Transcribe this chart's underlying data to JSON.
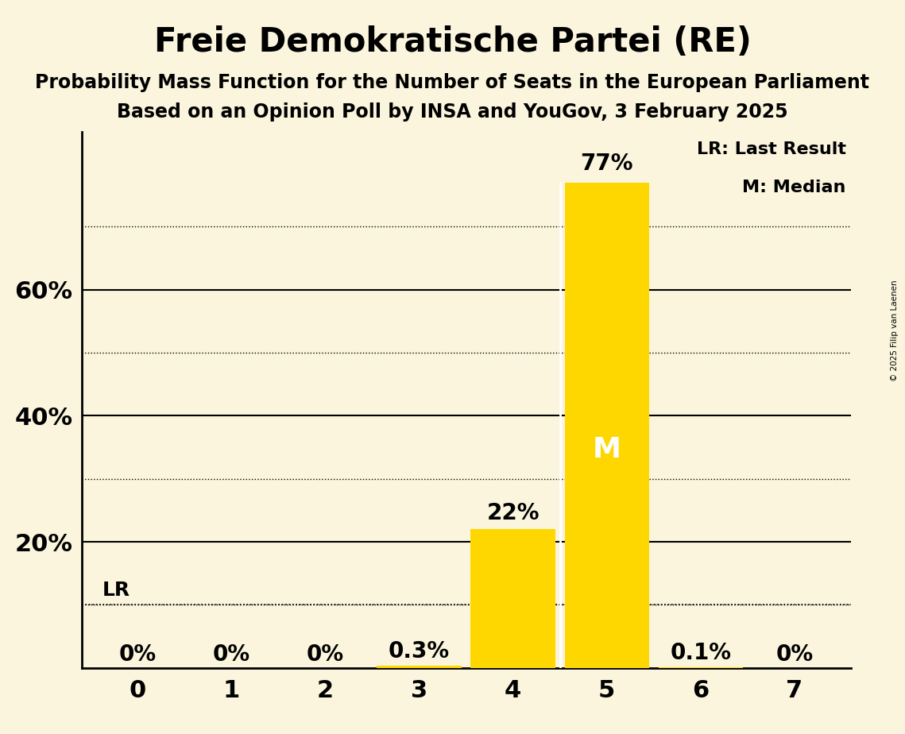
{
  "title": "Freie Demokratische Partei (RE)",
  "subtitle1": "Probability Mass Function for the Number of Seats in the European Parliament",
  "subtitle2": "Based on an Opinion Poll by INSA and YouGov, 3 February 2025",
  "copyright": "© 2025 Filip van Laenen",
  "categories": [
    0,
    1,
    2,
    3,
    4,
    5,
    6,
    7
  ],
  "values": [
    0.0,
    0.0,
    0.0,
    0.003,
    0.22,
    0.77,
    0.001,
    0.0
  ],
  "labels": [
    "0%",
    "0%",
    "0%",
    "0.3%",
    "22%",
    "77%",
    "0.1%",
    "0%"
  ],
  "bar_color": "#FFD700",
  "background_color": "#FAF5DC",
  "median": 5,
  "last_result": 4,
  "last_result_value": 0.1,
  "median_label": "M",
  "legend_lr": "LR: Last Result",
  "legend_m": "M: Median",
  "shown_yticks": [
    0.2,
    0.4,
    0.6
  ],
  "dotted_yticks": [
    0.1,
    0.3,
    0.5,
    0.7
  ],
  "ylim": [
    0,
    0.85
  ],
  "bar_width": 0.9
}
